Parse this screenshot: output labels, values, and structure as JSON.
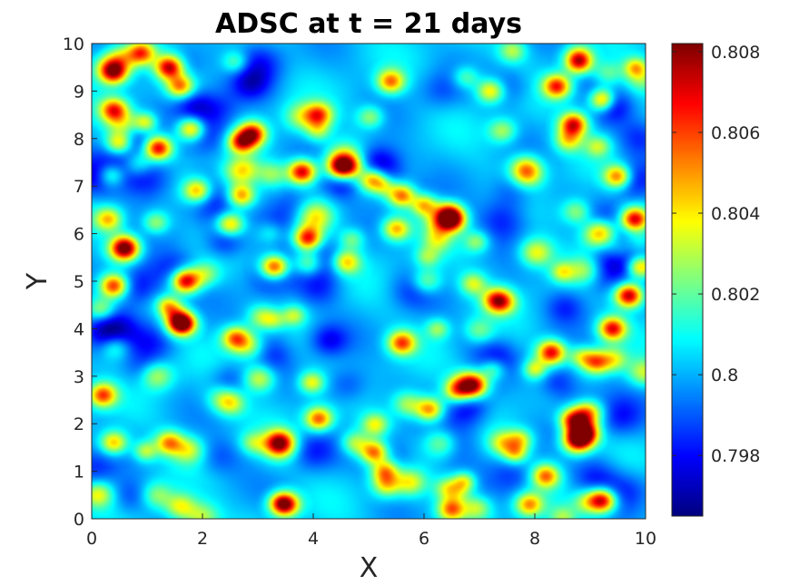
{
  "chart_data": {
    "type": "heatmap",
    "title": "ADSC at t = 21 days",
    "xlabel": "X",
    "ylabel": "Y",
    "xlim": [
      0,
      10
    ],
    "ylim": [
      0,
      10
    ],
    "x_ticks": [
      "0",
      "2",
      "4",
      "6",
      "8",
      "10"
    ],
    "y_ticks": [
      "0",
      "1",
      "2",
      "3",
      "4",
      "5",
      "6",
      "7",
      "8",
      "9",
      "10"
    ],
    "colormap": "jet",
    "clim": [
      0.7965,
      0.8082
    ],
    "colorbar_ticks": [
      "0.798",
      "0.8",
      "0.802",
      "0.804",
      "0.806",
      "0.808"
    ],
    "colorbar_tick_values": [
      0.798,
      0.8,
      0.802,
      0.804,
      0.806,
      0.808
    ],
    "grid": false,
    "peaks": [
      [
        0.4,
        9.4,
        0.8065
      ],
      [
        0.9,
        9.8,
        0.806
      ],
      [
        1.4,
        9.5,
        0.8075
      ],
      [
        1.6,
        9.1,
        0.8055
      ],
      [
        0.4,
        8.6,
        0.806
      ],
      [
        1.8,
        8.2,
        0.8055
      ],
      [
        1.2,
        7.8,
        0.8075
      ],
      [
        2.9,
        8.1,
        0.807
      ],
      [
        0.5,
        7.9,
        0.805
      ],
      [
        3.8,
        7.3,
        0.8075
      ],
      [
        4.5,
        7.4,
        0.807
      ],
      [
        4.1,
        8.5,
        0.8055
      ],
      [
        5.4,
        9.2,
        0.8055
      ],
      [
        7.2,
        9.0,
        0.8045
      ],
      [
        8.4,
        9.1,
        0.8065
      ],
      [
        8.8,
        9.6,
        0.806
      ],
      [
        8.7,
        8.3,
        0.807
      ],
      [
        9.5,
        7.2,
        0.806
      ],
      [
        6.0,
        6.6,
        0.8055
      ],
      [
        5.6,
        6.8,
        0.806
      ],
      [
        6.5,
        6.3,
        0.808
      ],
      [
        9.8,
        6.3,
        0.8075
      ],
      [
        3.9,
        5.9,
        0.807
      ],
      [
        0.6,
        5.7,
        0.807
      ],
      [
        0.4,
        4.9,
        0.8065
      ],
      [
        1.7,
        5.0,
        0.8075
      ],
      [
        1.6,
        4.1,
        0.8075
      ],
      [
        3.3,
        5.3,
        0.807
      ],
      [
        9.7,
        4.7,
        0.808
      ],
      [
        9.9,
        5.3,
        0.806
      ],
      [
        9.4,
        4.0,
        0.807
      ],
      [
        5.6,
        3.7,
        0.806
      ],
      [
        8.3,
        3.5,
        0.807
      ],
      [
        6.9,
        2.8,
        0.807
      ],
      [
        6.6,
        2.7,
        0.805
      ],
      [
        0.2,
        2.6,
        0.806
      ],
      [
        5.1,
        1.4,
        0.806
      ],
      [
        5.3,
        1.0,
        0.805
      ],
      [
        4.1,
        2.1,
        0.806
      ],
      [
        8.8,
        1.7,
        0.8065
      ],
      [
        3.5,
        0.3,
        0.8075
      ],
      [
        6.5,
        0.2,
        0.8055
      ],
      [
        2.6,
        3.8,
        0.8055
      ],
      [
        3.4,
        1.6,
        0.8055
      ],
      [
        1.9,
        6.9,
        0.805
      ],
      [
        2.7,
        6.8,
        0.8055
      ],
      [
        8.2,
        0.9,
        0.8055
      ],
      [
        7.9,
        0.3,
        0.805
      ],
      [
        9.1,
        3.3,
        0.8055
      ],
      [
        6.1,
        2.3,
        0.8055
      ],
      [
        1.4,
        1.6,
        0.805
      ],
      [
        0.4,
        1.6,
        0.805
      ],
      [
        9.2,
        0.4,
        0.805
      ],
      [
        5.5,
        6.1,
        0.805
      ],
      [
        7.3,
        4.6,
        0.805
      ],
      [
        2.5,
        6.2,
        0.805
      ],
      [
        4.6,
        5.4,
        0.8045
      ],
      [
        0.3,
        6.3,
        0.8045
      ]
    ],
    "troughs": [
      [
        2.3,
        8.6,
        0.7985
      ],
      [
        3.6,
        6.6,
        0.7985
      ],
      [
        6.8,
        2.3,
        0.7978
      ],
      [
        4.0,
        1.4,
        0.7985
      ],
      [
        9.9,
        5.8,
        0.7975
      ],
      [
        9.1,
        5.1,
        0.7985
      ],
      [
        5.2,
        7.5,
        0.7985
      ],
      [
        7.6,
        6.9,
        0.7988
      ],
      [
        9.9,
        8.0,
        0.7985
      ],
      [
        1.1,
        3.7,
        0.7988
      ],
      [
        3.2,
        4.2,
        0.7988
      ],
      [
        7.6,
        0.9,
        0.7988
      ],
      [
        9.7,
        0.6,
        0.7988
      ],
      [
        0.2,
        4.1,
        0.799
      ],
      [
        6.3,
        9.0,
        0.799
      ],
      [
        4.6,
        2.8,
        0.7985
      ],
      [
        8.9,
        2.4,
        0.7988
      ],
      [
        2.3,
        1.3,
        0.799
      ],
      [
        5.8,
        4.8,
        0.7988
      ],
      [
        1.7,
        9.6,
        0.799
      ]
    ]
  }
}
